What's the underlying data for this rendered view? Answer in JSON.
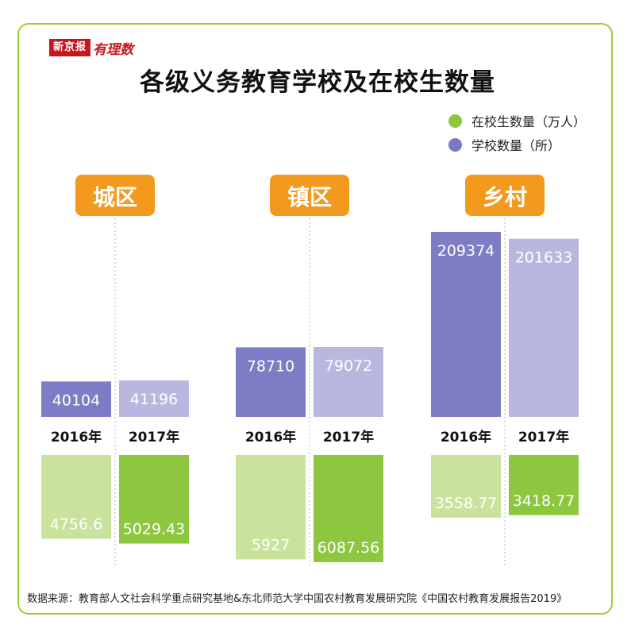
{
  "logo": {
    "main": "新京报",
    "sub": "有理数"
  },
  "title": "各级义务教育学校及在校生数量",
  "legend": [
    {
      "label": "在校生数量（万人）",
      "color": "#8dc63f"
    },
    {
      "label": "学校数量（所）",
      "color": "#7b78c4"
    }
  ],
  "source": "数据来源：教育部人文社会科学重点研究基地&东北师范大学中国农村教育发展研究院《中国农村教育发展报告2019》",
  "chart_data": {
    "type": "bar",
    "colors": {
      "schools_2016": "#7e7cc5",
      "schools_2017": "#b9b7e0",
      "students_2016": "#c9e39c",
      "students_2017": "#8dc63f",
      "group_label_bg": "#f39a1e"
    },
    "groups": [
      {
        "label": "城区",
        "years": [
          "2016年",
          "2017年"
        ],
        "schools": [
          40104,
          41196
        ],
        "schools_labels": [
          "40104",
          "41196"
        ],
        "students": [
          4756.6,
          5029.43
        ],
        "students_labels": [
          "4756.6",
          "5029.43"
        ]
      },
      {
        "label": "镇区",
        "years": [
          "2016年",
          "2017年"
        ],
        "schools": [
          78710,
          79072
        ],
        "schools_labels": [
          "78710",
          "79072"
        ],
        "students": [
          5927,
          6087.56
        ],
        "students_labels": [
          "5927",
          "6087.56"
        ]
      },
      {
        "label": "乡村",
        "years": [
          "2016年",
          "2017年"
        ],
        "schools": [
          209374,
          201633
        ],
        "schools_labels": [
          "209374",
          "201633"
        ],
        "students": [
          3558.77,
          3418.77
        ],
        "students_labels": [
          "3558.77",
          "3418.77"
        ]
      }
    ]
  }
}
